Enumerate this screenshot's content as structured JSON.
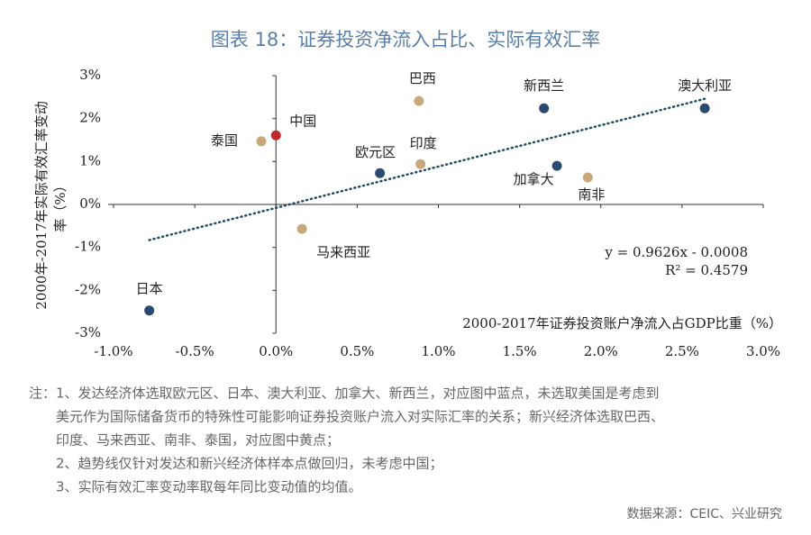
{
  "chart_data": {
    "type": "scatter",
    "title": "图表 18：证券投资净流入占比、实际有效汇率",
    "xlabel": "2000-2017年证券投资账户净流入占GDP比重（%）",
    "ylabel": [
      "2000年-2017年实际有效汇率变动",
      "率（%）"
    ],
    "xlim": [
      -1.0,
      3.0
    ],
    "ylim": [
      -3,
      3
    ],
    "xticks": [
      {
        "value": -1.0,
        "label": "-1.0%"
      },
      {
        "value": -0.5,
        "label": "-0.5%"
      },
      {
        "value": 0.0,
        "label": "0.0%"
      },
      {
        "value": 0.5,
        "label": "0.5%"
      },
      {
        "value": 1.0,
        "label": "1.0%"
      },
      {
        "value": 1.5,
        "label": "1.5%"
      },
      {
        "value": 2.0,
        "label": "2.0%"
      },
      {
        "value": 2.5,
        "label": "2.5%"
      },
      {
        "value": 3.0,
        "label": "3.0%"
      }
    ],
    "yticks": [
      {
        "value": -3,
        "label": "-3%"
      },
      {
        "value": -2,
        "label": "-2%"
      },
      {
        "value": -1,
        "label": "-1%"
      },
      {
        "value": 0,
        "label": "0%"
      },
      {
        "value": 1,
        "label": "1%"
      },
      {
        "value": 2,
        "label": "2%"
      },
      {
        "value": 3,
        "label": "3%"
      }
    ],
    "points": [
      {
        "label": "日本",
        "x": -0.78,
        "y": -2.47,
        "color": "#2b4a6f"
      },
      {
        "label": "中国",
        "x": 0.0,
        "y": 1.61,
        "color": "#c0282d"
      },
      {
        "label": "泰国",
        "x": -0.09,
        "y": 1.47,
        "color": "#c9a87a"
      },
      {
        "label": "马来西亚",
        "x": 0.16,
        "y": -0.57,
        "color": "#c9a87a"
      },
      {
        "label": "欧元区",
        "x": 0.64,
        "y": 0.73,
        "color": "#2b4a6f"
      },
      {
        "label": "印度",
        "x": 0.89,
        "y": 0.94,
        "color": "#c9a87a"
      },
      {
        "label": "巴西",
        "x": 0.88,
        "y": 2.41,
        "color": "#c9a87a"
      },
      {
        "label": "新西兰",
        "x": 1.65,
        "y": 2.24,
        "color": "#2b4a6f"
      },
      {
        "label": "加拿大",
        "x": 1.73,
        "y": 0.9,
        "color": "#2b4a6f"
      },
      {
        "label": "南非",
        "x": 1.92,
        "y": 0.63,
        "color": "#c9a87a"
      },
      {
        "label": "澳大利亚",
        "x": 2.64,
        "y": 2.24,
        "color": "#2b4a6f"
      }
    ],
    "trendline": {
      "x": [
        -0.78,
        2.64
      ],
      "y": [
        -0.83,
        2.46
      ],
      "color": "#1f4e5f"
    },
    "annotations": [
      "y = 0.9626x - 0.0008",
      "R² = 0.4579"
    ]
  },
  "notes": [
    "注：1、发达经济体选取欧元区、日本、澳大利亚、加拿大、新西兰，对应图中蓝点，未选取美国是考虑到",
    "美元作为国际储备货币的特殊性可能影响证券投资账户流入对实际汇率的关系；新兴经济体选取巴西、",
    "印度、马来西亚、南非、泰国，对应图中黄点；",
    "2、趋势线仅针对发达和新兴经济体样本点做回归，未考虑中国；",
    "3、实际有效汇率变动率取每年同比变动值的均值。"
  ],
  "source": "数据来源：CEIC、兴业研究"
}
